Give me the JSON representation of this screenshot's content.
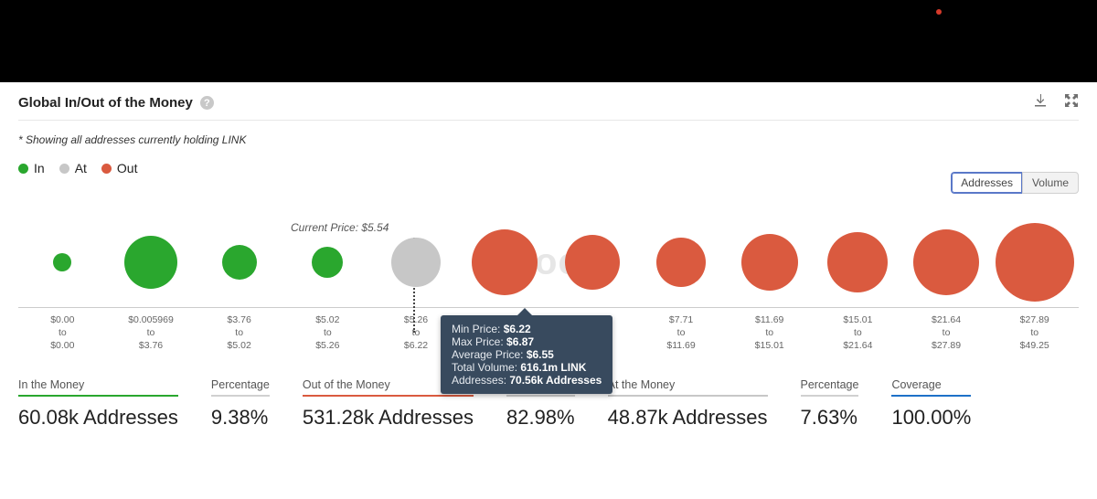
{
  "title": "Global In/Out of the Money",
  "note": "* Showing all addresses currently holding LINK",
  "legend": {
    "in": "In",
    "at": "At",
    "out": "Out"
  },
  "toggles": {
    "addresses": "Addresses",
    "volume": "Volume",
    "active": "addresses"
  },
  "colors": {
    "in": "#2aa72e",
    "at": "#c7c7c7",
    "out": "#da5a3f",
    "tooltip_bg": "#384a5e",
    "underline_default": "#d0d0d0",
    "underline_coverage": "#1e71c8"
  },
  "current_price_label": "Current Price: $5.54",
  "watermark": "Block",
  "bubbles": [
    {
      "type": "in",
      "size": 20,
      "range": [
        "$0.00",
        "$0.00"
      ]
    },
    {
      "type": "in",
      "size": 58,
      "range": [
        "$0.005969",
        "$3.76"
      ]
    },
    {
      "type": "in",
      "size": 38,
      "range": [
        "$3.76",
        "$5.02"
      ]
    },
    {
      "type": "in",
      "size": 34,
      "range": [
        "$5.02",
        "$5.26"
      ]
    },
    {
      "type": "at",
      "size": 54,
      "range": [
        "$5.26",
        "$6.22"
      ]
    },
    {
      "type": "out",
      "size": 72,
      "range": [
        "$6.22",
        "$6.87"
      ]
    },
    {
      "type": "out",
      "size": 60,
      "range": [
        "$6.87",
        "$7.71"
      ]
    },
    {
      "type": "out",
      "size": 54,
      "range": [
        "$7.71",
        "$11.69"
      ]
    },
    {
      "type": "out",
      "size": 62,
      "range": [
        "$11.69",
        "$15.01"
      ]
    },
    {
      "type": "out",
      "size": 66,
      "range": [
        "$15.01",
        "$21.64"
      ]
    },
    {
      "type": "out",
      "size": 72,
      "range": [
        "$21.64",
        "$27.89"
      ]
    },
    {
      "type": "out",
      "size": 86,
      "range": [
        "$27.89",
        "$49.25"
      ]
    }
  ],
  "tooltip": {
    "rows": [
      {
        "k": "Min Price:",
        "v": "$6.22"
      },
      {
        "k": "Max Price:",
        "v": "$6.87"
      },
      {
        "k": "Average Price:",
        "v": "$6.55"
      },
      {
        "k": "Total Volume:",
        "v": "616.1m LINK"
      },
      {
        "k": "Addresses:",
        "v": "70.56k Addresses"
      }
    ]
  },
  "stats": [
    {
      "label": "In the Money",
      "value": "60.08k Addresses",
      "under": "#2aa72e"
    },
    {
      "label": "Percentage",
      "value": "9.38%",
      "under": "#d0d0d0"
    },
    {
      "label": "Out of the Money",
      "value": "531.28k Addresses",
      "under": "#da5a3f"
    },
    {
      "label": "Percentage",
      "value": "82.98%",
      "under": "#d0d0d0"
    },
    {
      "label": "At the Money",
      "value": "48.87k Addresses",
      "under": "#c7c7c7"
    },
    {
      "label": "Percentage",
      "value": "7.63%",
      "under": "#d0d0d0"
    },
    {
      "label": "Coverage",
      "value": "100.00%",
      "under": "#1e71c8"
    }
  ]
}
